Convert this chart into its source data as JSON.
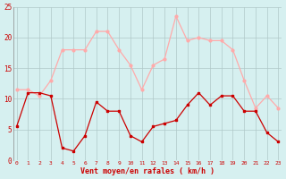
{
  "x": [
    0,
    1,
    2,
    3,
    4,
    5,
    6,
    7,
    8,
    9,
    10,
    11,
    12,
    13,
    14,
    15,
    16,
    17,
    18,
    19,
    20,
    21,
    22,
    23
  ],
  "wind_avg": [
    5.5,
    11,
    11,
    10.5,
    2,
    1.5,
    4,
    9.5,
    8,
    8,
    4,
    3,
    5.5,
    6,
    6.5,
    9,
    11,
    9,
    10.5,
    10.5,
    8,
    8,
    4.5,
    3
  ],
  "wind_gust": [
    11.5,
    11.5,
    10.5,
    13,
    18,
    18,
    18,
    21,
    21,
    18,
    15.5,
    11.5,
    15.5,
    16.5,
    23.5,
    19.5,
    20,
    19.5,
    19.5,
    18,
    13,
    8.5,
    10.5,
    8.5
  ],
  "color_avg": "#cc0000",
  "color_gust": "#ffaaaa",
  "bg_color": "#d6f0f0",
  "grid_color": "#b0c8c8",
  "xlabel": "Vent moyen/en rafales ( km/h )",
  "ylim": [
    0,
    25
  ],
  "yticks": [
    0,
    5,
    10,
    15,
    20,
    25
  ],
  "xlim": [
    -0.3,
    23.3
  ],
  "tick_color": "#cc0000"
}
